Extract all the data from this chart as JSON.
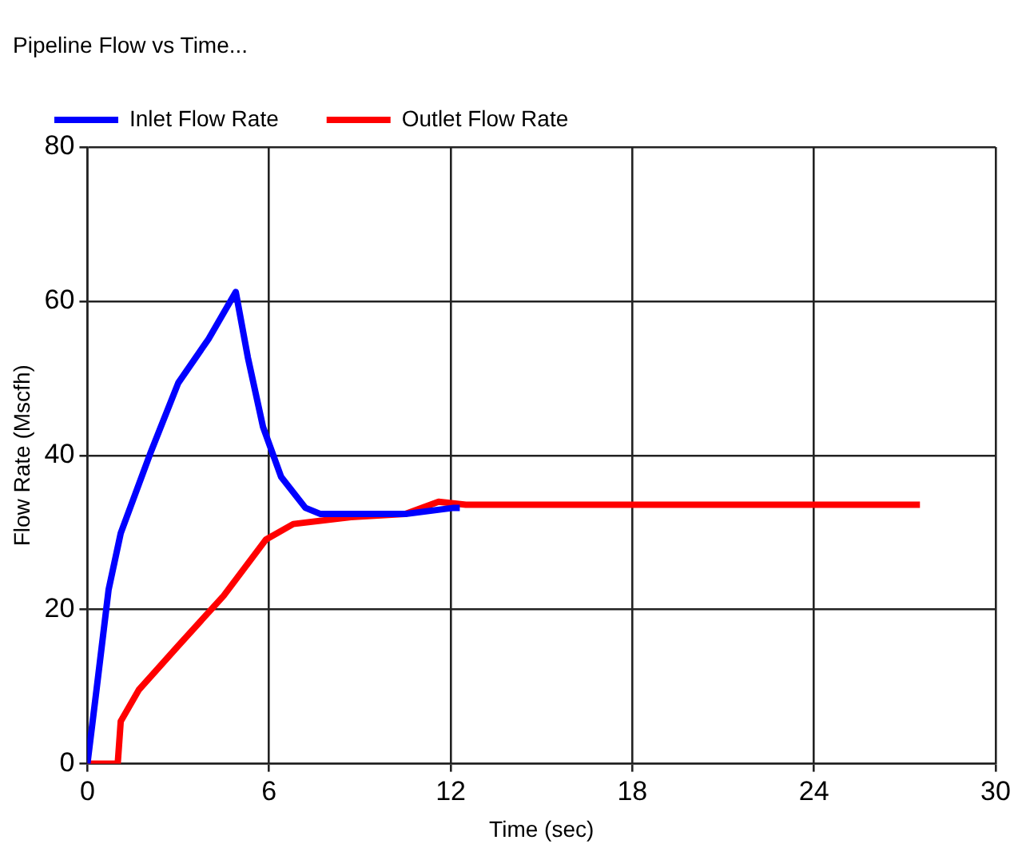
{
  "chart_data": {
    "type": "line",
    "title": "Pipeline Flow vs Time...",
    "xlabel": "Time (sec)",
    "ylabel": "Flow Rate (Mscfh)",
    "xlim": [
      0,
      30
    ],
    "xticks": [
      0,
      6,
      12,
      18,
      24,
      30
    ],
    "ylim": [
      0,
      80
    ],
    "yticks": [
      0,
      20,
      40,
      60,
      80
    ],
    "grid": true,
    "legend": "top",
    "marker": "none",
    "series": [
      {
        "name": "Inlet Flow Rate",
        "color": "#0000ff",
        "x": [
          0,
          0.3,
          0.7,
          1.1,
          2.1,
          3,
          4,
          4.9,
          5.3,
          5.8,
          6.4,
          7.2,
          7.7,
          10.5,
          12.1,
          12.3
        ],
        "values": [
          0,
          9.6,
          22.6,
          29.9,
          40.5,
          49.4,
          55.1,
          61.2,
          52.7,
          43.7,
          37.2,
          33.2,
          32.4,
          32.4,
          33.2,
          33.2
        ]
      },
      {
        "name": "Outlet Flow Rate",
        "color": "#ff0000",
        "x": [
          0,
          1,
          1.1,
          1.7,
          3,
          4.5,
          5.9,
          6.8,
          8.7,
          10.5,
          11.6,
          12.5,
          27.5
        ],
        "values": [
          0,
          0,
          5.5,
          9.6,
          15.3,
          21.8,
          29.1,
          31.1,
          32,
          32.4,
          34,
          33.6,
          33.6
        ]
      }
    ]
  }
}
